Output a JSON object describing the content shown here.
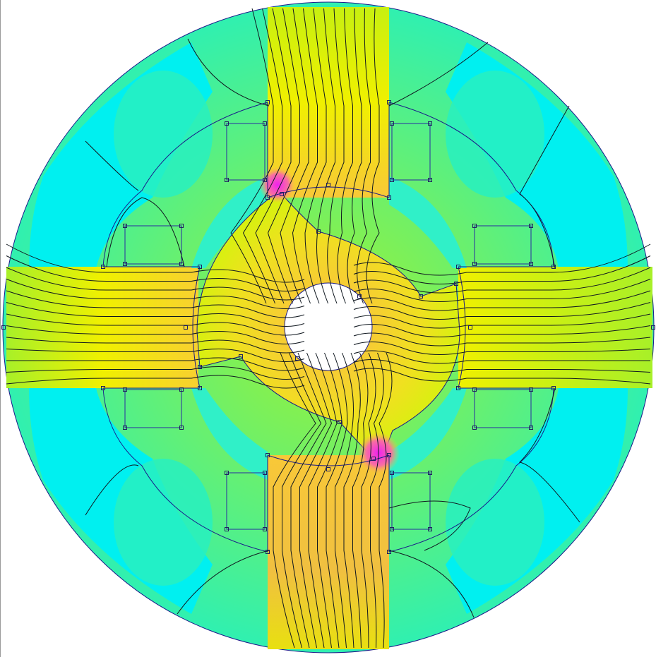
{
  "colors": {
    "background": "#ffffff",
    "low_field": "#00f0f0",
    "low_mid_field": "#20f0c0",
    "mid_field": "#a0f030",
    "high_mid_field": "#f0f000",
    "high_field": "#f8c030",
    "peak_field": "#f030f0",
    "flux_line": "#101820",
    "boundary": "#1a1a8a"
  },
  "stator_poles": 4,
  "rotor_poles": 2,
  "coil_rectangles": 8
}
